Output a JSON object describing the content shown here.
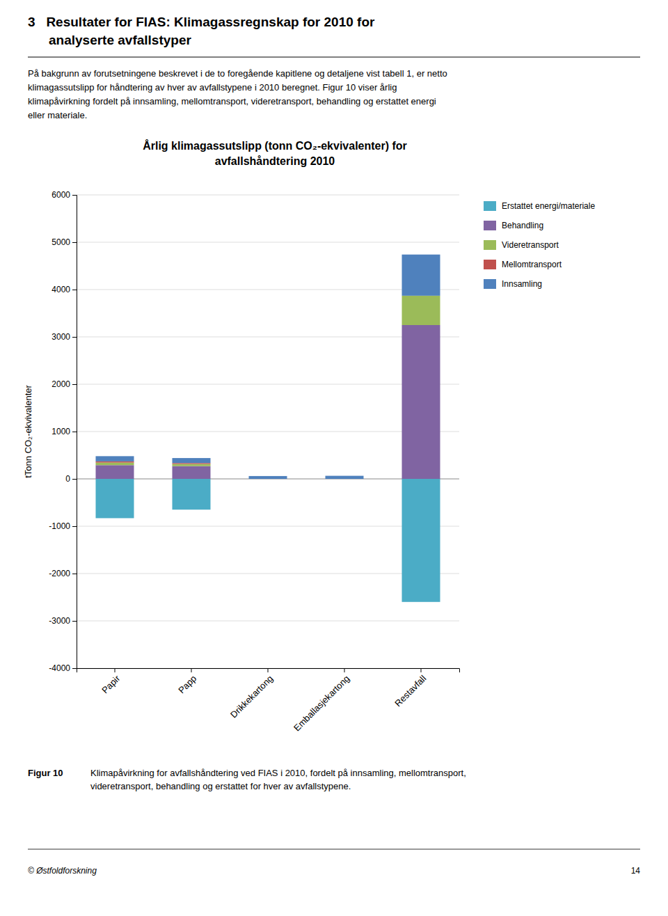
{
  "chart_data": {
    "type": "bar",
    "stacked": true,
    "title": "Årlig klimagassutslipp (tonn CO₂-ekvivalenter) for\navfallshåndtering 2010",
    "categories": [
      "Papir",
      "Papp",
      "Drikkekartong",
      "Emballasjekartong",
      "Restavfall"
    ],
    "series": [
      {
        "name": "Erstattet energi/materiale",
        "color": "#4BACC6",
        "values": [
          -830,
          -650,
          0,
          0,
          -2600
        ]
      },
      {
        "name": "Behandling",
        "color": "#8064A2",
        "values": [
          290,
          270,
          0,
          0,
          3250
        ]
      },
      {
        "name": "Videretransport",
        "color": "#9BBB59",
        "values": [
          55,
          45,
          0,
          0,
          620
        ]
      },
      {
        "name": "Mellomtransport",
        "color": "#C0504D",
        "values": [
          25,
          20,
          0,
          0,
          0
        ]
      },
      {
        "name": "Innsamling",
        "color": "#4F81BD",
        "values": [
          110,
          105,
          60,
          65,
          870
        ]
      }
    ],
    "ylabel": "tTonn CO₂-ekvivalenter",
    "ylim": [
      -4000,
      6000
    ],
    "yticks": [
      -4000,
      -3000,
      -2000,
      -1000,
      0,
      1000,
      2000,
      3000,
      4000,
      5000,
      6000
    ],
    "grid": true,
    "legend": "right"
  },
  "page": {
    "heading": [
      "3   Resultater for FIAS: Klimagassregnskap for 2010 for",
      "analyserte avfallstyper"
    ],
    "body": [
      "På bakgrunn av forutsetningene beskrevet i de to foregående kapitlene og detaljene vist tabell 1, er netto",
      "klimagassutslipp for håndtering av hver av avfallstypene i 2010 beregnet. Figur 10 viser årlig",
      "klimapåvirkning fordelt på innsamling, mellomtransport, videretransport, behandling og erstattet energi",
      "eller materiale."
    ],
    "caption_label": "Figur 10",
    "caption": [
      "Klimapåvirkning for avfallshåndtering ved FIAS i 2010, fordelt på innsamling, mellomtransport,",
      "videretransport, behandling og erstattet for hver av avfallstypene."
    ],
    "footer_left": "© Østfoldforskning",
    "footer_right": "14"
  }
}
